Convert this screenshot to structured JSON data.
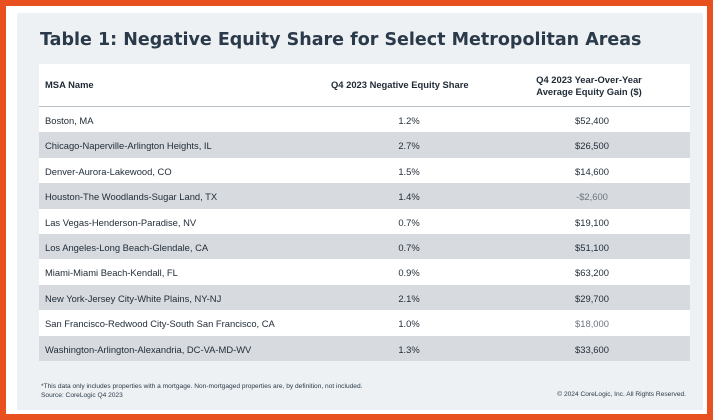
{
  "title": "Table 1: Negative Equity Share for Select Metropolitan Areas",
  "columns": {
    "name": "MSA Name",
    "share": "Q4 2023  Negative Equity Share",
    "gain_line1": "Q4 2023 Year-Over-Year",
    "gain_line2": "Average Equity Gain ($)"
  },
  "rows": [
    {
      "name": "Boston, MA",
      "share": "1.2%",
      "gain": "$52,400"
    },
    {
      "name": "Chicago-Naperville-Arlington Heights, IL",
      "share": "2.7%",
      "gain": "$26,500"
    },
    {
      "name": "Denver-Aurora-Lakewood, CO",
      "share": "1.5%",
      "gain": "$14,600"
    },
    {
      "name": "Houston-The Woodlands-Sugar Land, TX",
      "share": "1.4%",
      "gain": "-$2,600"
    },
    {
      "name": "Las Vegas-Henderson-Paradise, NV",
      "share": "0.7%",
      "gain": "$19,100"
    },
    {
      "name": "Los Angeles-Long Beach-Glendale, CA",
      "share": "0.7%",
      "gain": "$51,100"
    },
    {
      "name": "Miami-Miami Beach-Kendall, FL",
      "share": "0.9%",
      "gain": "$63,200"
    },
    {
      "name": "New York-Jersey City-White Plains, NY-NJ",
      "share": "2.1%",
      "gain": "$29,700"
    },
    {
      "name": "San Francisco-Redwood City-South San Francisco, CA",
      "share": "1.0%",
      "gain": "$18,000"
    },
    {
      "name": "Washington-Arlington-Alexandria, DC-VA-MD-WV",
      "share": "1.3%",
      "gain": "$33,600"
    }
  ],
  "footnote": {
    "line1": "*This data only includes properties with a mortgage. Non-mortgaged properties are, by definition, not included.",
    "line2": "Source: CoreLogic Q4 2023"
  },
  "copyright": "© 2024 CoreLogic, Inc. All Rights Reserved.",
  "colors": {
    "border": "#e8501f",
    "background": "#eef1f3",
    "stripe": "#d7dbdf",
    "title": "#2b3a4a"
  }
}
